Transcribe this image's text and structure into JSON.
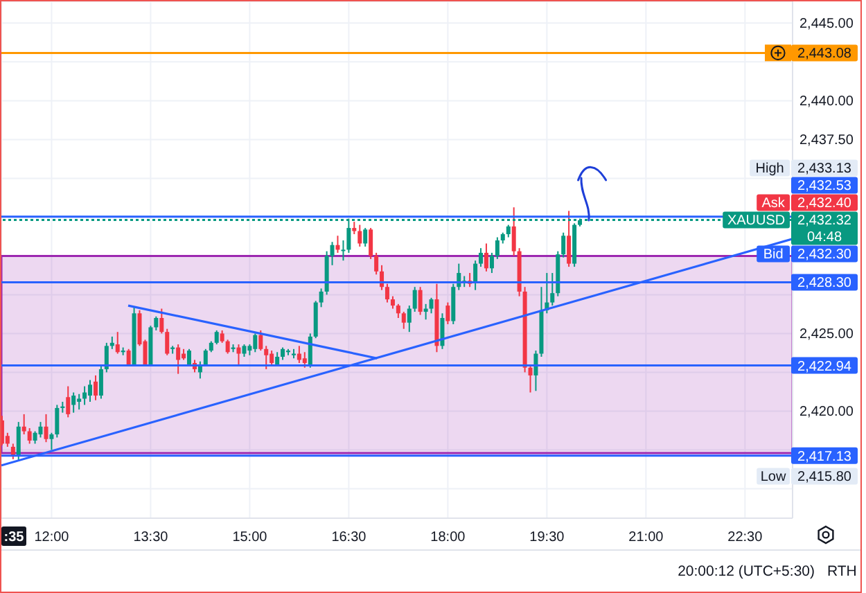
{
  "chart_data": {
    "type": "candlestick",
    "x": [
      11.25,
      11.333,
      11.417,
      11.5,
      11.583,
      11.667,
      11.75,
      11.833,
      11.917,
      12,
      12.083,
      12.167,
      12.25,
      12.333,
      12.417,
      12.5,
      12.583,
      12.667,
      12.75,
      12.833,
      12.917,
      13,
      13.083,
      13.167,
      13.25,
      13.333,
      13.417,
      13.5,
      13.583,
      13.667,
      13.75,
      13.833,
      13.917,
      14,
      14.083,
      14.167,
      14.25,
      14.333,
      14.417,
      14.5,
      14.583,
      14.667,
      14.75,
      14.833,
      14.917,
      15,
      15.083,
      15.167,
      15.25,
      15.333,
      15.417,
      15.5,
      15.583,
      15.667,
      15.75,
      15.833,
      15.917,
      16,
      16.083,
      16.167,
      16.25,
      16.333,
      16.417,
      16.5,
      16.583,
      16.667,
      16.75,
      16.833,
      16.917,
      17,
      17.083,
      17.167,
      17.25,
      17.333,
      17.417,
      17.5,
      17.583,
      17.667,
      17.75,
      17.833,
      17.917,
      18,
      18.083,
      18.167,
      18.25,
      18.333,
      18.417,
      18.5,
      18.583,
      18.667,
      18.75,
      18.833,
      18.917,
      19,
      19.083,
      19.167,
      19.25,
      19.333,
      19.417,
      19.5,
      19.583,
      19.667,
      19.75,
      19.833,
      19.917,
      20
    ],
    "ohlc": [
      [
        2419.4,
        2419.7,
        2417.8,
        2417.9
      ],
      [
        2418.4,
        2418.6,
        2417.7,
        2417.9
      ],
      [
        2417.7,
        2417.9,
        2416.9,
        2417.1
      ],
      [
        2417.1,
        2419.3,
        2416.8,
        2419.0
      ],
      [
        2419.0,
        2419.8,
        2418.5,
        2418.7
      ],
      [
        2418.7,
        2418.9,
        2417.9,
        2418.1
      ],
      [
        2418.1,
        2418.7,
        2417.9,
        2418.6
      ],
      [
        2418.5,
        2419.3,
        2418.3,
        2419.0
      ],
      [
        2419.0,
        2419.8,
        2418.0,
        2418.2
      ],
      [
        2418.2,
        2418.6,
        2417.5,
        2418.5
      ],
      [
        2418.5,
        2420.4,
        2418.3,
        2420.2
      ],
      [
        2420.2,
        2420.6,
        2419.9,
        2420.3
      ],
      [
        2420.9,
        2421.6,
        2419.6,
        2419.8
      ],
      [
        2420.4,
        2421.2,
        2419.9,
        2421.0
      ],
      [
        2420.6,
        2421.1,
        2420.1,
        2420.8
      ],
      [
        2420.8,
        2421.6,
        2420.4,
        2421.2
      ],
      [
        2421.0,
        2422.0,
        2420.6,
        2421.7
      ],
      [
        2421.9,
        2422.3,
        2420.7,
        2421.0
      ],
      [
        2421.0,
        2422.9,
        2420.8,
        2422.7
      ],
      [
        2422.7,
        2424.4,
        2422.5,
        2424.2
      ],
      [
        2424.2,
        2424.8,
        2424.0,
        2424.4
      ],
      [
        2424.3,
        2425.1,
        2423.7,
        2423.8
      ],
      [
        2423.8,
        2424.1,
        2423.6,
        2423.9
      ],
      [
        2423.9,
        2424.0,
        2423.0,
        2423.0
      ],
      [
        2423.0,
        2426.7,
        2422.9,
        2426.3
      ],
      [
        2426.3,
        2426.5,
        2424.2,
        2424.3
      ],
      [
        2424.5,
        2424.6,
        2422.9,
        2423.0
      ],
      [
        2423.0,
        2425.5,
        2422.9,
        2425.4
      ],
      [
        2425.4,
        2426.1,
        2425.2,
        2426.0
      ],
      [
        2426.0,
        2426.6,
        2425.0,
        2425.1
      ],
      [
        2425.1,
        2425.3,
        2423.6,
        2423.7
      ],
      [
        2424.0,
        2424.2,
        2423.7,
        2424.1
      ],
      [
        2424.1,
        2424.3,
        2422.4,
        2423.3
      ],
      [
        2423.7,
        2424.0,
        2423.3,
        2423.4
      ],
      [
        2423.0,
        2424.0,
        2422.9,
        2423.9
      ],
      [
        2423.1,
        2423.3,
        2422.5,
        2422.7
      ],
      [
        2422.5,
        2423.2,
        2422.1,
        2423.0
      ],
      [
        2423.0,
        2424.0,
        2422.9,
        2423.9
      ],
      [
        2423.9,
        2424.5,
        2423.8,
        2424.4
      ],
      [
        2424.4,
        2425.2,
        2424.3,
        2425.1
      ],
      [
        2425.0,
        2425.2,
        2424.4,
        2424.5
      ],
      [
        2424.5,
        2424.6,
        2423.7,
        2423.8
      ],
      [
        2424.0,
        2424.3,
        2423.8,
        2424.1
      ],
      [
        2424.1,
        2424.3,
        2422.9,
        2423.7
      ],
      [
        2423.7,
        2424.3,
        2423.5,
        2424.2
      ],
      [
        2423.9,
        2424.3,
        2423.6,
        2424.2
      ],
      [
        2424.0,
        2425.0,
        2423.8,
        2424.9
      ],
      [
        2424.9,
        2425.2,
        2423.9,
        2424.0
      ],
      [
        2424.0,
        2424.2,
        2422.7,
        2423.6
      ],
      [
        2423.7,
        2423.9,
        2423.0,
        2423.1
      ],
      [
        2423.0,
        2423.8,
        2422.9,
        2423.5
      ],
      [
        2423.5,
        2424.1,
        2423.3,
        2424.0
      ],
      [
        2423.8,
        2424.0,
        2423.6,
        2423.9
      ],
      [
        2423.6,
        2424.0,
        2423.4,
        2423.7
      ],
      [
        2423.7,
        2424.2,
        2423.1,
        2423.3
      ],
      [
        2423.4,
        2423.8,
        2422.8,
        2423.1
      ],
      [
        2423.0,
        2425.0,
        2422.8,
        2424.8
      ],
      [
        2424.8,
        2427.1,
        2424.7,
        2427.0
      ],
      [
        2427.0,
        2427.9,
        2426.7,
        2427.7
      ],
      [
        2427.7,
        2430.3,
        2427.5,
        2430.0
      ],
      [
        2430.0,
        2430.9,
        2429.4,
        2430.7
      ],
      [
        2430.7,
        2431.3,
        2430.2,
        2430.4
      ],
      [
        2430.4,
        2431.0,
        2429.7,
        2430.4
      ],
      [
        2430.4,
        2432.4,
        2430.2,
        2431.8
      ],
      [
        2431.8,
        2432.2,
        2431.4,
        2431.6
      ],
      [
        2431.6,
        2432.0,
        2430.6,
        2430.8
      ],
      [
        2430.8,
        2431.8,
        2430.6,
        2431.7
      ],
      [
        2431.7,
        2431.8,
        2429.8,
        2430.0
      ],
      [
        2430.0,
        2430.2,
        2428.8,
        2429.0
      ],
      [
        2429.0,
        2429.4,
        2427.8,
        2428.0
      ],
      [
        2428.0,
        2428.2,
        2427.0,
        2427.2
      ],
      [
        2427.2,
        2427.4,
        2426.6,
        2426.8
      ],
      [
        2426.8,
        2426.9,
        2426.0,
        2426.3
      ],
      [
        2426.3,
        2426.4,
        2425.3,
        2425.7
      ],
      [
        2425.7,
        2426.8,
        2425.1,
        2426.6
      ],
      [
        2426.6,
        2428.0,
        2426.4,
        2427.8
      ],
      [
        2427.8,
        2428.0,
        2426.2,
        2426.4
      ],
      [
        2426.4,
        2426.9,
        2425.9,
        2426.6
      ],
      [
        2426.6,
        2427.3,
        2426.3,
        2427.2
      ],
      [
        2427.2,
        2428.2,
        2423.8,
        2424.2
      ],
      [
        2424.2,
        2426.3,
        2424.0,
        2426.0
      ],
      [
        2426.8,
        2427.0,
        2425.6,
        2425.8
      ],
      [
        2425.8,
        2428.2,
        2425.6,
        2428.0
      ],
      [
        2428.0,
        2429.5,
        2427.8,
        2428.9
      ],
      [
        2428.3,
        2428.7,
        2428.0,
        2428.4
      ],
      [
        2428.4,
        2428.9,
        2428.0,
        2428.2
      ],
      [
        2428.3,
        2429.7,
        2427.8,
        2429.5
      ],
      [
        2429.5,
        2430.5,
        2429.3,
        2430.2
      ],
      [
        2430.2,
        2430.8,
        2429.0,
        2429.2
      ],
      [
        2429.2,
        2430.2,
        2428.9,
        2430.0
      ],
      [
        2430.0,
        2431.2,
        2429.8,
        2431.0
      ],
      [
        2431.0,
        2431.5,
        2430.8,
        2431.4
      ],
      [
        2431.4,
        2432.0,
        2431.2,
        2431.9
      ],
      [
        2431.9,
        2433.13,
        2430.0,
        2430.3
      ],
      [
        2430.3,
        2430.5,
        2427.4,
        2427.7
      ],
      [
        2427.7,
        2428.0,
        2422.5,
        2422.8
      ],
      [
        2422.8,
        2423.0,
        2421.2,
        2422.3
      ],
      [
        2422.3,
        2423.9,
        2421.3,
        2423.7
      ],
      [
        2423.7,
        2428.0,
        2423.5,
        2426.5
      ],
      [
        2426.5,
        2428.9,
        2426.3,
        2427.0
      ],
      [
        2427.0,
        2428.9,
        2426.8,
        2427.6
      ],
      [
        2427.6,
        2430.3,
        2427.4,
        2430.1
      ],
      [
        2430.1,
        2431.5,
        2429.9,
        2431.3
      ],
      [
        2431.3,
        2432.9,
        2429.3,
        2429.5
      ],
      [
        2429.5,
        2432.1,
        2429.3,
        2432.0
      ],
      [
        2432.0,
        2432.4,
        2431.9,
        2432.3
      ]
    ],
    "colors": [
      "#f23645",
      "#f23645",
      "#f23645",
      "#089981",
      "#f23645",
      "#f23645",
      "#089981",
      "#089981",
      "#f23645",
      "#089981",
      "#089981",
      "#089981",
      "#f23645",
      "#089981",
      "#089981",
      "#089981",
      "#089981",
      "#f23645",
      "#089981",
      "#089981",
      "#089981",
      "#f23645",
      "#089981",
      "#f23645",
      "#089981",
      "#f23645",
      "#f23645",
      "#089981",
      "#089981",
      "#f23645",
      "#f23645",
      "#089981",
      "#f23645",
      "#f23645",
      "#089981",
      "#f23645",
      "#089981",
      "#089981",
      "#089981",
      "#089981",
      "#f23645",
      "#f23645",
      "#089981",
      "#f23645",
      "#089981",
      "#089981",
      "#089981",
      "#f23645",
      "#f23645",
      "#f23645",
      "#089981",
      "#089981",
      "#089981",
      "#089981",
      "#f23645",
      "#f23645",
      "#089981",
      "#089981",
      "#089981",
      "#089981",
      "#089981",
      "#f23645",
      "#089981",
      "#089981",
      "#f23645",
      "#f23645",
      "#089981",
      "#f23645",
      "#f23645",
      "#f23645",
      "#f23645",
      "#f23645",
      "#f23645",
      "#f23645",
      "#089981",
      "#089981",
      "#f23645",
      "#089981",
      "#089981",
      "#f23645",
      "#089981",
      "#f23645",
      "#089981",
      "#089981",
      "#089981",
      "#f23645",
      "#089981",
      "#089981",
      "#f23645",
      "#089981",
      "#089981",
      "#089981",
      "#089981",
      "#f23645",
      "#f23645",
      "#f23645",
      "#f23645",
      "#089981",
      "#089981",
      "#089981",
      "#089981",
      "#089981",
      "#089981",
      "#f23645",
      "#089981",
      "#089981"
    ],
    "series": [
      {
        "type": "line",
        "x": [
          11.24,
          23.22
        ],
        "values": [
          2416.5,
          2431.1
        ],
        "color": "#2962ff"
      },
      {
        "type": "line",
        "x": [
          13.16,
          16.93
        ],
        "values": [
          2426.8,
          2423.4
        ],
        "color": "#2962ff"
      }
    ],
    "xlim": [
      11.24,
      23.22
    ],
    "xticks": [
      {
        "value": 12,
        "label": "12:00"
      },
      {
        "value": 13.5,
        "label": "13:30"
      },
      {
        "value": 15,
        "label": "15:00"
      },
      {
        "value": 16.5,
        "label": "16:30"
      },
      {
        "value": 18,
        "label": "18:00"
      },
      {
        "value": 19.5,
        "label": "19:30"
      },
      {
        "value": 21,
        "label": "21:00"
      },
      {
        "value": 22.5,
        "label": "22:30"
      }
    ],
    "ylim": [
      2413.1,
      2446.4
    ],
    "yticks": [
      {
        "value": 2415,
        "label": null
      },
      {
        "value": 2417.5,
        "label": null
      },
      {
        "value": 2420,
        "label": "2,420.00"
      },
      {
        "value": 2422.5,
        "label": null
      },
      {
        "value": 2425,
        "label": "2,425.00"
      },
      {
        "value": 2427.5,
        "label": null
      },
      {
        "value": 2432.5,
        "label": null
      },
      {
        "value": 2435,
        "label": null
      },
      {
        "value": 2437.5,
        "label": "2,437.50"
      },
      {
        "value": 2440,
        "label": "2,440.00"
      },
      {
        "value": 2442.5,
        "label": null
      },
      {
        "value": 2445,
        "label": "2,445.00"
      }
    ],
    "grid": true,
    "bands": [
      {
        "axis": "y",
        "from": 2417.3,
        "to": 2430.0,
        "color": "#9c27b0"
      }
    ],
    "ref_lines": [
      {
        "axis": "y",
        "value": 2443.08,
        "label": "2,443.08",
        "color": "#ff9800",
        "line_style": "solid"
      },
      {
        "axis": "y",
        "value": 2432.53,
        "label": "2,432.53",
        "color": "#2962ff",
        "line_style": "solid"
      },
      {
        "axis": "y",
        "value": 2432.32,
        "label": "2,432.32",
        "color": "#089981",
        "line_style": "dotted"
      },
      {
        "axis": "y",
        "value": 2428.3,
        "label": "2,428.30",
        "color": "#2962ff",
        "line_style": "solid"
      },
      {
        "axis": "y",
        "value": 2422.94,
        "label": "2,422.94",
        "color": "#2962ff",
        "line_style": "solid"
      },
      {
        "axis": "y",
        "value": 2417.13,
        "label": "2,417.13",
        "color": "#2962ff",
        "line_style": "solid"
      }
    ],
    "annotations": [
      "High",
      "2,433.13",
      "Ask",
      "2,432.40",
      "XAUUSD",
      "04:48",
      "Bid",
      "2,432.30",
      "Low",
      "2,415.80",
      ":35",
      "20:00:12 (UTC+5:30)",
      "RTH"
    ]
  }
}
